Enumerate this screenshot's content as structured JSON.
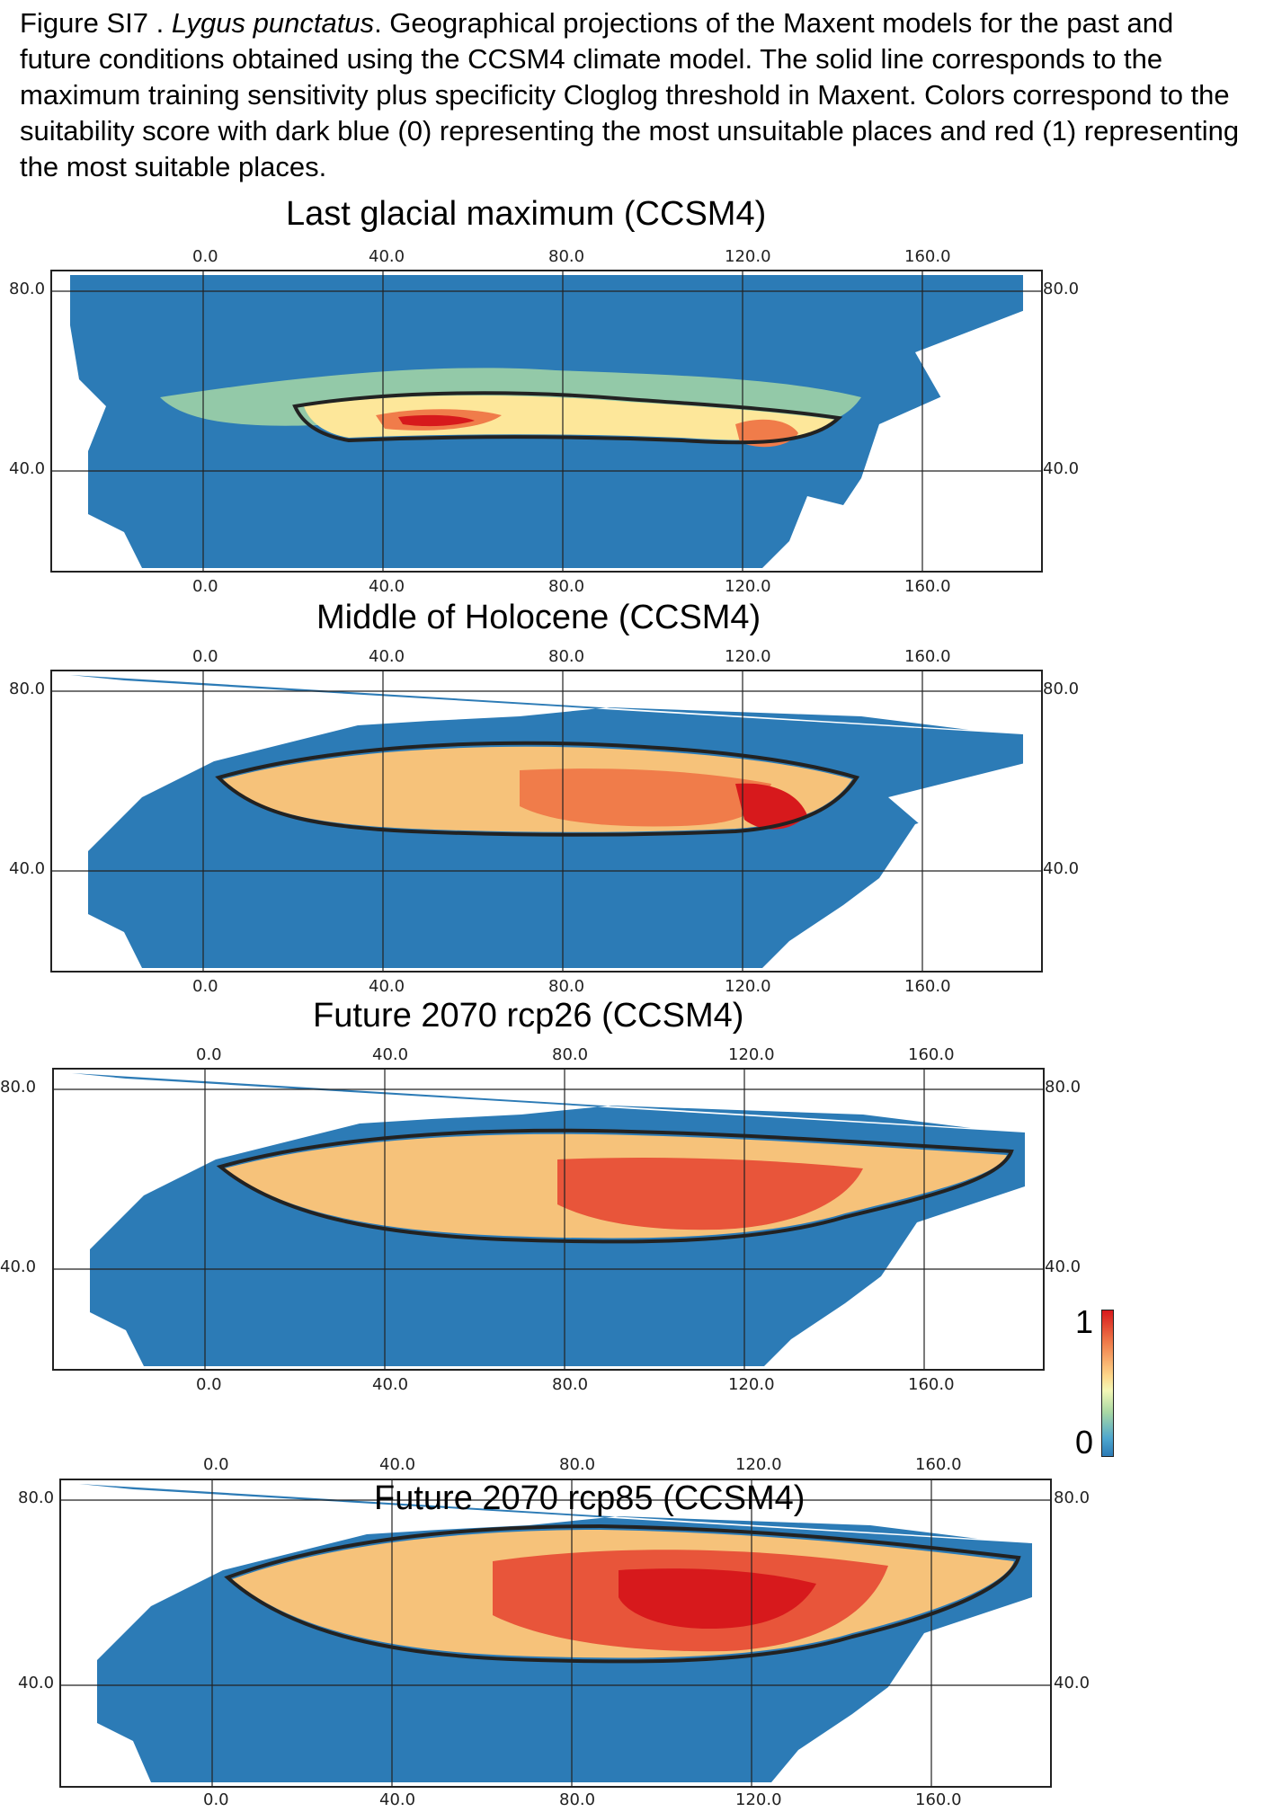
{
  "caption": {
    "lead": "Figure SI7 . ",
    "species": "Lygus punctatus",
    "rest": ". Geographical projections of the Maxent models for the past and future conditions obtained using the CCSM4 climate model. The solid line corresponds to the maximum training sensitivity plus specificity Cloglog threshold in Maxent. Colors correspond to the suitability score with dark blue (0) representing the most unsuitable places and red (1) representing the most suitable places."
  },
  "panels": [
    {
      "title": "Last glacial maximum (CCSM4)"
    },
    {
      "title": "Middle of Holocene (CCSM4)"
    },
    {
      "title": "Future 2070 rcp26 (CCSM4)"
    },
    {
      "title": "Future 2070 rcp85 (CCSM4)"
    }
  ],
  "axes": {
    "lon_ticks": [
      "0.0",
      "40.0",
      "80.0",
      "120.0",
      "160.0"
    ],
    "lat_ticks": [
      "80.0",
      "40.0"
    ]
  },
  "colorbar": {
    "max_label": "1",
    "min_label": "0"
  },
  "colors": {
    "unsuitable": "#2c7bb6",
    "mid": "#f3f7b6",
    "suitable": "#d7191c",
    "threshold_line": "#222222"
  }
}
